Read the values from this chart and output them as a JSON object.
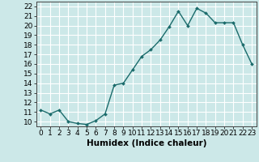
{
  "x": [
    0,
    1,
    2,
    3,
    4,
    5,
    6,
    7,
    8,
    9,
    10,
    11,
    12,
    13,
    14,
    15,
    16,
    17,
    18,
    19,
    20,
    21,
    22,
    23
  ],
  "y": [
    11.2,
    10.8,
    11.2,
    10.0,
    9.8,
    9.7,
    10.1,
    10.8,
    13.8,
    14.0,
    15.4,
    16.8,
    17.5,
    18.5,
    19.9,
    21.5,
    20.0,
    21.8,
    21.3,
    20.3,
    20.3,
    20.3,
    18.0,
    16.0
  ],
  "line_color": "#1a6b6b",
  "marker": "D",
  "marker_size": 2.0,
  "line_width": 1.0,
  "bg_color": "#cce8e8",
  "grid_color": "#ffffff",
  "xlabel": "Humidex (Indice chaleur)",
  "xlabel_fontsize": 7.5,
  "xlim": [
    -0.5,
    23.5
  ],
  "ylim": [
    9.5,
    22.5
  ],
  "yticks": [
    10,
    11,
    12,
    13,
    14,
    15,
    16,
    17,
    18,
    19,
    20,
    21,
    22
  ],
  "xtick_labels": [
    "0",
    "1",
    "2",
    "3",
    "4",
    "5",
    "6",
    "7",
    "8",
    "9",
    "10",
    "11",
    "12",
    "13",
    "14",
    "15",
    "16",
    "17",
    "18",
    "19",
    "20",
    "21",
    "22",
    "23"
  ],
  "tick_fontsize": 6.5
}
